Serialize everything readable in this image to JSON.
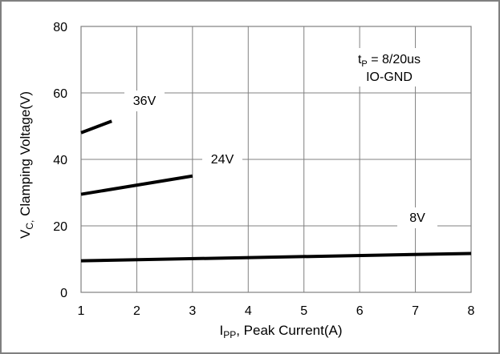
{
  "chart_data": {
    "type": "line",
    "xlabel_main": "I",
    "xlabel_sub": "PP",
    "xlabel_rest": ", Peak Current(A)",
    "ylabel_main": "V",
    "ylabel_sub": "C,",
    "ylabel_rest": " Clamping Voltage(V)",
    "xlim": [
      1,
      8
    ],
    "ylim": [
      0,
      80
    ],
    "x_ticks": [
      "1",
      "2",
      "3",
      "4",
      "5",
      "6",
      "7",
      "8"
    ],
    "y_ticks": [
      "0",
      "20",
      "40",
      "60",
      "80"
    ],
    "grid": true,
    "annotation_line1_main": "t",
    "annotation_line1_sub": "P",
    "annotation_line1_rest": " = 8/20us",
    "annotation_line2": "IO-GND",
    "series": [
      {
        "label": "36V",
        "x": [
          1,
          1.55
        ],
        "y": [
          48,
          51.5
        ]
      },
      {
        "label": "24V",
        "x": [
          1,
          3
        ],
        "y": [
          29.5,
          35
        ]
      },
      {
        "label": "8V",
        "x": [
          1,
          8
        ],
        "y": [
          9.5,
          11.7
        ]
      }
    ],
    "colors": {
      "line": "#000000",
      "grid": "#808080",
      "frame": "#808080"
    }
  }
}
